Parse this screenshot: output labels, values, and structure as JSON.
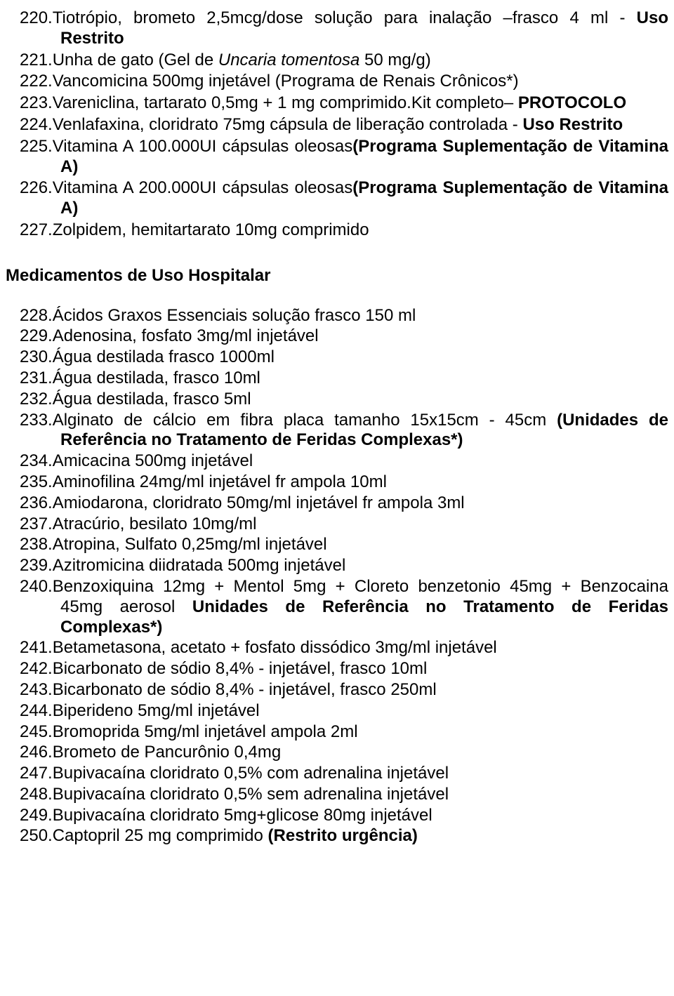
{
  "list1": [
    {
      "num": "220.",
      "text": "Tiotrópio, brometo 2,5mcg/dose solução para inalação –frasco 4 ml - ",
      "bold_suffix": "Uso Restrito",
      "justify": true,
      "hanging": true,
      "suffix_on_newline": true
    },
    {
      "num": "221.",
      "text": "Unha de gato (Gel de ",
      "italic_mid": "Uncaria tomentosa",
      "text_after": " 50 mg/g)",
      "hanging": true
    },
    {
      "num": "222.",
      "text": "Vancomicina 500mg injetável (Programa de Renais Crônicos*)",
      "hanging": true
    },
    {
      "num": "223.",
      "text": "Vareniclina, tartarato 0,5mg + 1 mg comprimido.Kit completo– ",
      "bold_suffix": "PROTOCOLO",
      "justify": true,
      "hanging": true,
      "suffix_on_newline": true
    },
    {
      "num": "224.",
      "text": "Venlafaxina, cloridrato 75mg cápsula de liberação controlada - ",
      "bold_suffix": "Uso Restrito",
      "justify": true,
      "hanging": true,
      "suffix_on_newline": true
    },
    {
      "num": "225.",
      "text": "Vitamina A 100.000UI cápsulas oleosas",
      "bold_suffix": "(Programa Suplementação de Vitamina A)",
      "justify": true,
      "hanging": true
    },
    {
      "num": "226.",
      "text": "Vitamina A 200.000UI cápsulas oleosas",
      "bold_suffix": "(Programa Suplementação de Vitamina A)",
      "justify": true,
      "hanging": true
    },
    {
      "num": "227.",
      "text": "Zolpidem, hemitartarato 10mg comprimido",
      "hanging": true
    }
  ],
  "heading": "Medicamentos de Uso Hospitalar",
  "list2": [
    {
      "num": "228.",
      "text": "Ácidos Graxos Essenciais solução frasco 150 ml"
    },
    {
      "num": "229.",
      "text": "Adenosina, fosfato 3mg/ml injetável"
    },
    {
      "num": "230.",
      "text": "Água destilada  frasco 1000ml"
    },
    {
      "num": "231.",
      "text": "Água destilada, frasco 10ml"
    },
    {
      "num": "232.",
      "text": "Água destilada, frasco 5ml"
    },
    {
      "num": "233.",
      "text": "Alginato de cálcio em fibra placa tamanho 15x15cm - 45cm ",
      "bold_suffix": "(Unidades de Referência no Tratamento de Feridas Complexas*)",
      "justify": true,
      "hanging": true
    },
    {
      "num": "234.",
      "text": "Amicacina 500mg injetável"
    },
    {
      "num": "235.",
      "text": "Aminofilina 24mg/ml injetável fr ampola 10ml"
    },
    {
      "num": "236.",
      "text": "Amiodarona, cloridrato 50mg/ml injetável fr ampola 3ml"
    },
    {
      "num": "237.",
      "text": "Atracúrio, besilato 10mg/ml"
    },
    {
      "num": "238.",
      "text": "Atropina, Sulfato 0,25mg/ml injetável"
    },
    {
      "num": "239.",
      "text": "Azitromicina diidratada 500mg injetável"
    },
    {
      "num": "240.",
      "text": "Benzoxiquina 12mg + Mentol 5mg + Cloreto benzetonio 45mg + Benzocaina 45mg aerosol ",
      "bold_suffix": "Unidades de Referência no Tratamento de Feridas Complexas*)",
      "justify": true,
      "hanging": true
    },
    {
      "num": "241.",
      "text": "Betametasona, acetato + fosfato dissódico 3mg/ml injetável"
    },
    {
      "num": "242.",
      "text": "Bicarbonato de sódio 8,4% - injetável, frasco 10ml"
    },
    {
      "num": "243.",
      "text": "Bicarbonato de sódio 8,4% - injetável, frasco 250ml"
    },
    {
      "num": "244.",
      "text": "Biperideno 5mg/ml injetável"
    },
    {
      "num": "245.",
      "text": "Bromoprida 5mg/ml injetável ampola 2ml"
    },
    {
      "num": "246.",
      "text": "Brometo de Pancurônio 0,4mg"
    },
    {
      "num": "247.",
      "text": "Bupivacaína cloridrato 0,5% com adrenalina injetável"
    },
    {
      "num": "248.",
      "text": "Bupivacaína cloridrato 0,5% sem adrenalina injetável"
    },
    {
      "num": "249.",
      "text": "Bupivacaína cloridrato 5mg+glicose 80mg injetável"
    },
    {
      "num": "250.",
      "text": "Captopril 25 mg comprimido ",
      "bold_suffix": "(Restrito urgência)"
    }
  ]
}
